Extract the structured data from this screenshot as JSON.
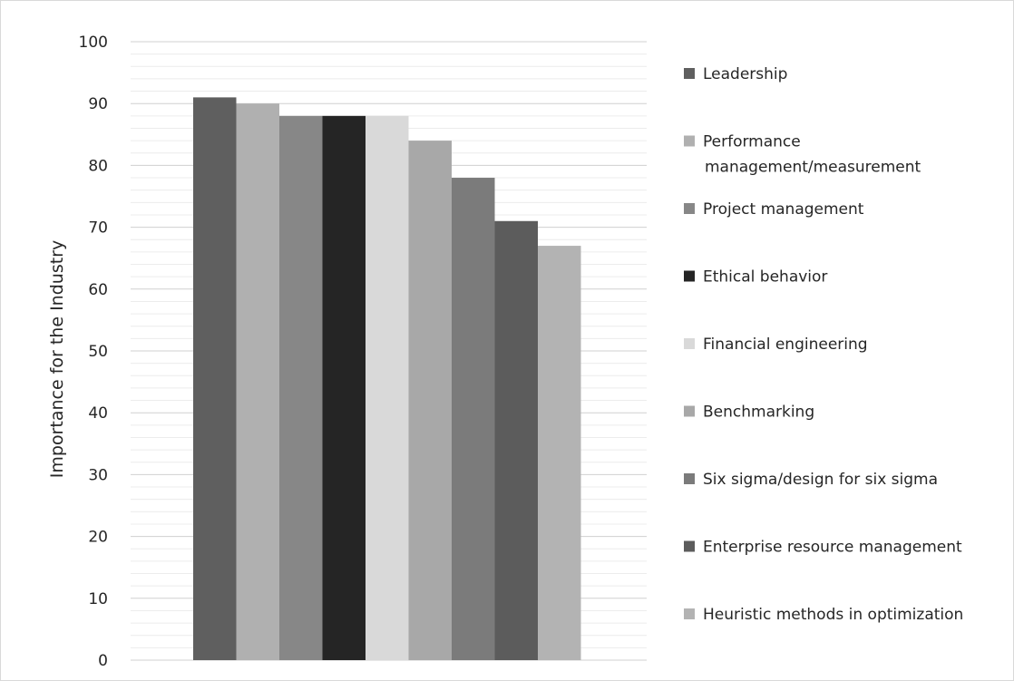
{
  "chart_data": {
    "type": "bar",
    "title": "",
    "xlabel": "",
    "ylabel": "Importance for the Industry",
    "ylim": [
      0,
      100
    ],
    "yticks": [
      0,
      10,
      20,
      30,
      40,
      50,
      60,
      70,
      80,
      90,
      100
    ],
    "major_step": 10,
    "minor_step": 2,
    "grid": "major and minor horizontal gridlines",
    "legend_position": "right",
    "series": [
      {
        "name": "Leadership",
        "values": [
          91
        ],
        "color": "#5f5f5f"
      },
      {
        "name": "Performance management/measurement",
        "legend_lines": [
          "Performance",
          "management/measurement"
        ],
        "values": [
          90
        ],
        "color": "#b0b0b0"
      },
      {
        "name": "Project management",
        "values": [
          88
        ],
        "color": "#878787"
      },
      {
        "name": "Ethical behavior",
        "values": [
          88
        ],
        "color": "#252525"
      },
      {
        "name": "Financial engineering",
        "values": [
          88
        ],
        "color": "#d9d9d9"
      },
      {
        "name": "Benchmarking",
        "values": [
          84
        ],
        "color": "#a8a8a8"
      },
      {
        "name": "Six sigma/design for six sigma",
        "values": [
          78
        ],
        "color": "#7b7b7b"
      },
      {
        "name": "Enterprise resource management",
        "values": [
          71
        ],
        "color": "#5c5c5c"
      },
      {
        "name": "Heuristic methods in optimization",
        "values": [
          67
        ],
        "color": "#b3b3b3"
      }
    ]
  }
}
